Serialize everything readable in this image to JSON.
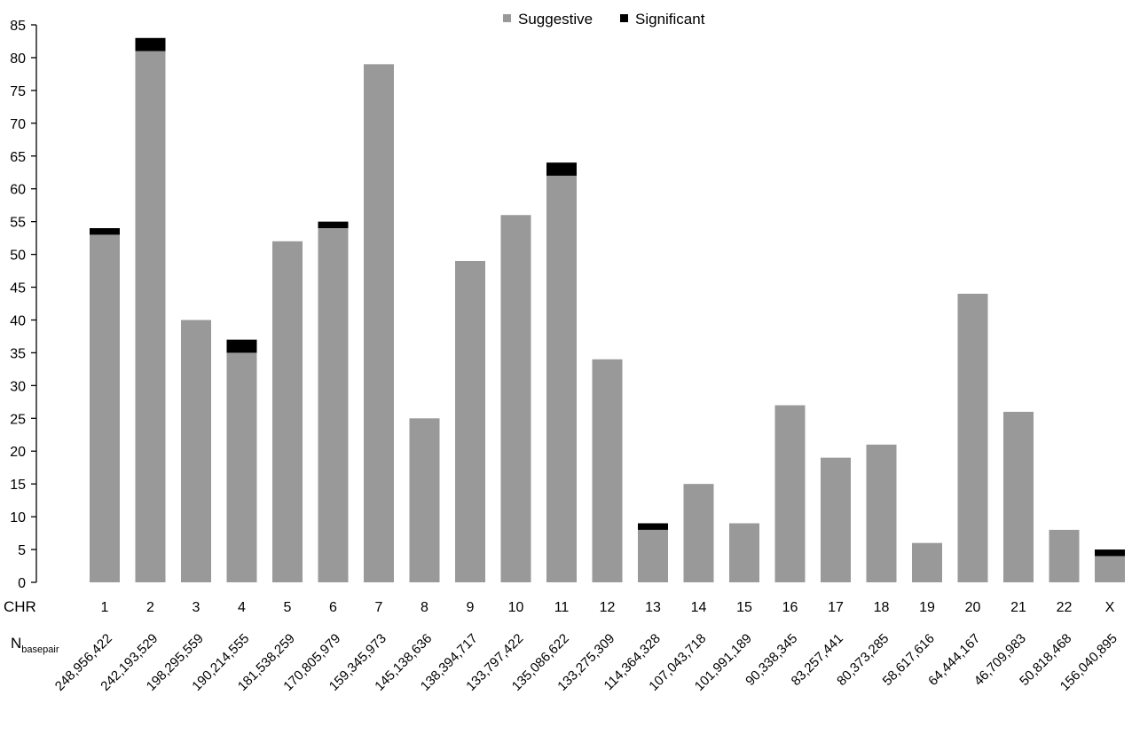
{
  "chart_data": {
    "type": "bar",
    "stacked": true,
    "categories": [
      "1",
      "2",
      "3",
      "4",
      "5",
      "6",
      "7",
      "8",
      "9",
      "10",
      "11",
      "12",
      "13",
      "14",
      "15",
      "16",
      "17",
      "18",
      "19",
      "20",
      "21",
      "22",
      "X"
    ],
    "series": [
      {
        "name": "Suggestive",
        "color": "#999999",
        "values": [
          53,
          81,
          40,
          35,
          52,
          54,
          79,
          25,
          49,
          56,
          62,
          34,
          8,
          15,
          9,
          27,
          19,
          21,
          6,
          44,
          26,
          8,
          4
        ]
      },
      {
        "name": "Significant",
        "color": "#000000",
        "values": [
          1,
          2,
          0,
          2,
          0,
          1,
          0,
          0,
          0,
          0,
          2,
          0,
          1,
          0,
          0,
          0,
          0,
          0,
          0,
          0,
          0,
          0,
          1
        ]
      }
    ],
    "x_row_title": "CHR",
    "n_row_title_main": "N",
    "n_row_title_sub": "basepair",
    "basepairs": [
      "248,956,422",
      "242,193,529",
      "198,295,559",
      "190,214,555",
      "181,538,259",
      "170,805,979",
      "159,345,973",
      "145,138,636",
      "138,394,717",
      "133,797,422",
      "135,086,622",
      "133,275,309",
      "114,364,328",
      "107,043,718",
      "101,991,189",
      "90,338,345",
      "83,257,441",
      "80,373,285",
      "58,617,616",
      "64,444,167",
      "46,709,983",
      "50,818,468",
      "156,040,895"
    ],
    "ylim": [
      0,
      85
    ],
    "yticks": [
      0,
      5,
      10,
      15,
      20,
      25,
      30,
      35,
      40,
      45,
      50,
      55,
      60,
      65,
      70,
      75,
      80,
      85
    ],
    "grid": false,
    "legend_position": "top-center"
  }
}
